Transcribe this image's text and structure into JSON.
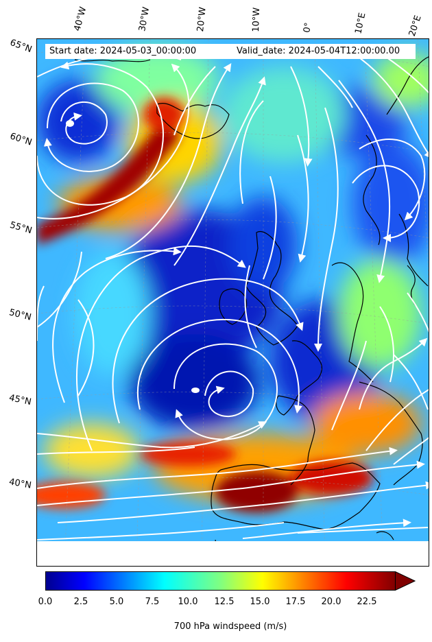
{
  "header": {
    "start_date": "Start date: 2024-05-03_00:00:00",
    "valid_date": "Valid_date: 2024-05-04T12:00:00.00"
  },
  "longitude_labels": [
    "40°W",
    "30°W",
    "20°W",
    "10°W",
    "0°",
    "10°E",
    "20°E"
  ],
  "latitude_labels": [
    "65°N",
    "60°N",
    "55°N",
    "50°N",
    "45°N",
    "40°N"
  ],
  "colorbar": {
    "title": "700 hPa windspeed (m/s)",
    "ticks": [
      "0.0",
      "2.5",
      "5.0",
      "7.5",
      "10.0",
      "12.5",
      "15.0",
      "17.5",
      "20.0",
      "22.5"
    ],
    "range": [
      0,
      25
    ],
    "extend": "max",
    "colormap": "jet"
  },
  "colors": {
    "streamlines": "#ffffff",
    "coastline": "#000000",
    "low_wind": "#00008f",
    "high_wind": "#800000"
  },
  "features": {
    "low_pressure_centers": [
      "north-atlantic-low-west",
      "biscay-low-center"
    ],
    "jet_streaks": [
      "iceland-jet",
      "iberia-jet"
    ]
  }
}
